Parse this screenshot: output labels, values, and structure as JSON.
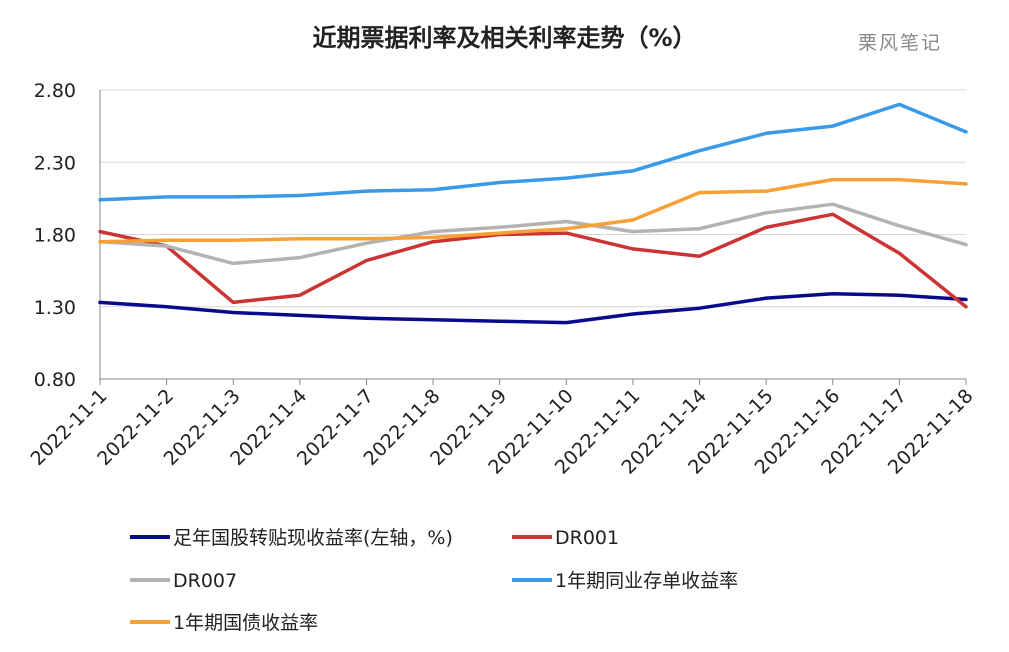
{
  "watermark": "栗风笔记",
  "chart_data": {
    "type": "line",
    "title": "近期票据利率及相关利率走势（%）",
    "xlabel": "",
    "ylabel": "",
    "ylim": [
      0.8,
      2.8
    ],
    "yticks": [
      "0.80",
      "1.30",
      "1.80",
      "2.30",
      "2.80"
    ],
    "grid": "horizontal",
    "legend_position": "bottom",
    "categories": [
      "2022-11-1",
      "2022-11-2",
      "2022-11-3",
      "2022-11-4",
      "2022-11-7",
      "2022-11-8",
      "2022-11-9",
      "2022-11-10",
      "2022-11-11",
      "2022-11-14",
      "2022-11-15",
      "2022-11-16",
      "2022-11-17",
      "2022-11-18"
    ],
    "series": [
      {
        "name": "足年国股转贴现收益率(左轴，%)",
        "color": "#0a0a8c",
        "values": [
          1.33,
          1.3,
          1.26,
          1.24,
          1.22,
          1.21,
          1.2,
          1.19,
          1.25,
          1.29,
          1.36,
          1.39,
          1.38,
          1.35
        ]
      },
      {
        "name": "DR001",
        "color": "#cc3333",
        "values": [
          1.82,
          1.72,
          1.33,
          1.38,
          1.62,
          1.75,
          1.8,
          1.81,
          1.7,
          1.65,
          1.85,
          1.94,
          1.67,
          1.3
        ]
      },
      {
        "name": "DR007",
        "color": "#b3b3b3",
        "values": [
          1.75,
          1.72,
          1.6,
          1.64,
          1.74,
          1.82,
          1.85,
          1.89,
          1.82,
          1.84,
          1.95,
          2.01,
          1.86,
          1.73
        ]
      },
      {
        "name": "1年期同业存单收益率",
        "color": "#3a9ae8",
        "values": [
          2.04,
          2.06,
          2.06,
          2.07,
          2.1,
          2.11,
          2.16,
          2.19,
          2.24,
          2.38,
          2.5,
          2.55,
          2.7,
          2.51
        ]
      },
      {
        "name": "1年期国债收益率",
        "color": "#f7a035",
        "values": [
          1.75,
          1.76,
          1.76,
          1.77,
          1.77,
          1.78,
          1.81,
          1.84,
          1.9,
          2.09,
          2.1,
          2.18,
          2.18,
          2.15
        ]
      }
    ]
  }
}
